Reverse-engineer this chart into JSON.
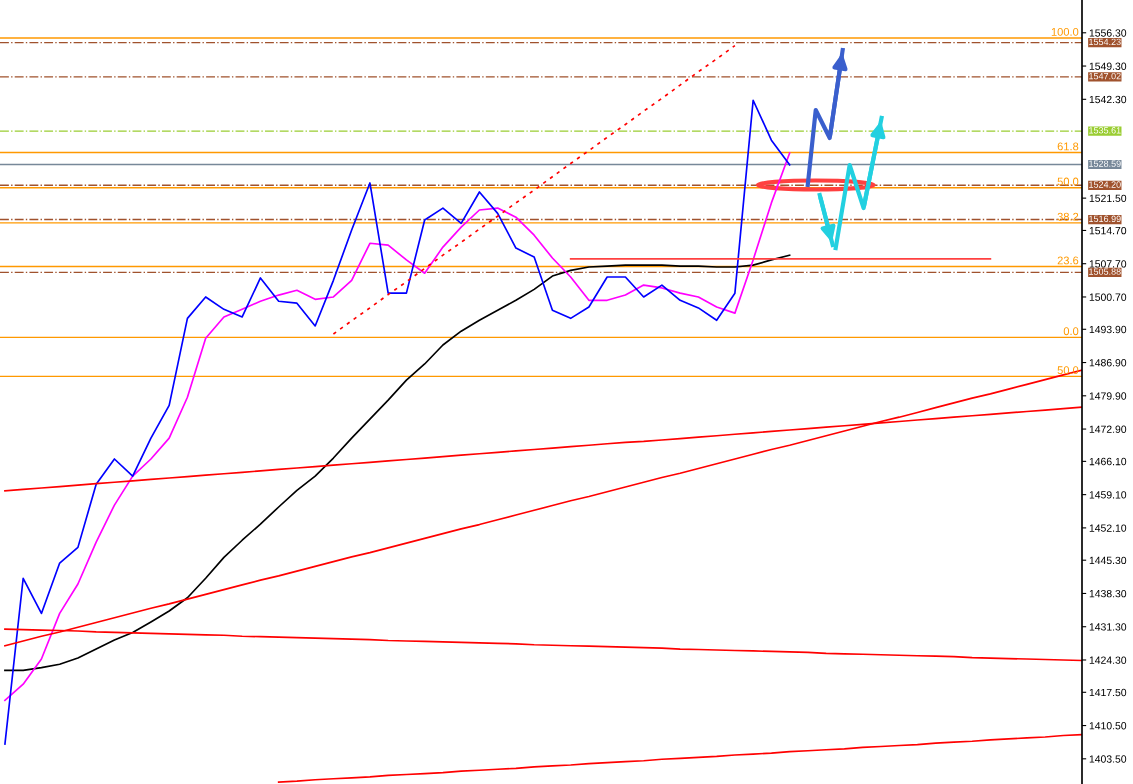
{
  "chart_data": {
    "type": "line",
    "categories": [
      null,
      null,
      null,
      null,
      null,
      null,
      null,
      null,
      null,
      null,
      null,
      null,
      null,
      null,
      null,
      null,
      null,
      null,
      null,
      null,
      null,
      null,
      null,
      null,
      null,
      null,
      null,
      null,
      null,
      null,
      null,
      null,
      null,
      null,
      null,
      null,
      null,
      null,
      null,
      null,
      null,
      null,
      null,
      null,
      null,
      null,
      null,
      null,
      null,
      null,
      null,
      null,
      null,
      null,
      null,
      null,
      null,
      null,
      null,
      null
    ],
    "ylim": [
      1398.2,
      1563.2
    ],
    "yticks": [
      {
        "value": 1403.5,
        "label": "1403.50"
      },
      {
        "value": 1410.5,
        "label": "1410.50"
      },
      {
        "value": 1417.5,
        "label": "1417.50"
      },
      {
        "value": 1424.3,
        "label": "1424.30"
      },
      {
        "value": 1431.3,
        "label": "1431.30"
      },
      {
        "value": 1438.3,
        "label": "1438.30"
      },
      {
        "value": 1445.3,
        "label": "1445.30"
      },
      {
        "value": 1452.1,
        "label": "1452.10"
      },
      {
        "value": 1459.1,
        "label": "1459.10"
      },
      {
        "value": 1466.1,
        "label": "1466.10"
      },
      {
        "value": 1472.9,
        "label": "1472.90"
      },
      {
        "value": 1479.9,
        "label": "1479.90"
      },
      {
        "value": 1486.9,
        "label": "1486.90"
      },
      {
        "value": 1493.9,
        "label": "1493.90"
      },
      {
        "value": 1500.7,
        "label": "1500.70"
      },
      {
        "value": 1507.7,
        "label": "1507.70"
      },
      {
        "value": 1514.7,
        "label": "1514.70"
      },
      {
        "value": 1521.5,
        "label": "1521.50"
      },
      {
        "value": 1542.3,
        "label": "1542.30"
      },
      {
        "value": 1549.3,
        "label": "1549.30"
      },
      {
        "value": 1556.3,
        "label": "1556.30"
      }
    ],
    "tick_labels": "y",
    "grid": false,
    "legend": false,
    "marker": "none",
    "line_style": "solid",
    "series": [
      {
        "color": "#000000",
        "values": [
          1422.1,
          1422.1,
          1422.7,
          1423.4,
          1424.7,
          1426.6,
          1428.5,
          1430.1,
          1432.3,
          1434.6,
          1437.4,
          1441.5,
          1445.9,
          1449.5,
          1452.9,
          1456.5,
          1460.0,
          1463.0,
          1466.8,
          1471.0,
          1475.0,
          1479.0,
          1483.2,
          1486.6,
          1490.6,
          1493.5,
          1495.8,
          1497.9,
          1500.0,
          1502.3,
          1505.1,
          1506.3,
          1507.0,
          1507.2,
          1507.4,
          1507.4,
          1507.4,
          1507.2,
          1507.2,
          1507.0,
          1507.0,
          1507.4,
          1508.5,
          1509.5,
          null,
          null,
          null,
          null,
          null,
          null,
          null,
          null,
          null,
          null,
          null,
          null,
          null,
          null,
          null,
          null
        ]
      },
      {
        "color": "#ff00ff",
        "values": [
          1415.8,
          1419.2,
          1424.5,
          1434.1,
          1440.3,
          1449.1,
          1456.9,
          1463.0,
          1466.6,
          1471.0,
          1479.6,
          1492.0,
          1496.5,
          1498.1,
          1499.8,
          1501.1,
          1502.1,
          1500.2,
          1500.7,
          1504.2,
          1512.0,
          1511.6,
          1508.5,
          1505.7,
          1511.2,
          1515.4,
          1519.0,
          1519.4,
          1517.5,
          1513.7,
          1508.9,
          1504.9,
          1500.0,
          1500.0,
          1501.1,
          1503.2,
          1502.6,
          1501.5,
          1500.7,
          1498.6,
          1497.3,
          1508.5,
          1520.5,
          1531.0,
          null,
          null,
          null,
          null,
          null,
          null,
          null,
          null,
          null,
          null,
          null,
          null,
          null,
          null,
          null,
          null
        ]
      },
      {
        "color": "#0000ff",
        "values": [
          1406.6,
          1441.5,
          1434.1,
          1444.7,
          1448.0,
          1461.3,
          1466.6,
          1463.0,
          1471.0,
          1477.9,
          1496.2,
          1500.7,
          1498.1,
          1496.5,
          1504.7,
          1499.8,
          1499.4,
          1494.6,
          1504.2,
          1514.8,
          1524.7,
          1501.5,
          1501.5,
          1516.9,
          1519.4,
          1516.2,
          1522.8,
          1518.3,
          1511.0,
          1509.1,
          1497.9,
          1496.2,
          1498.6,
          1504.9,
          1504.9,
          1500.7,
          1503.2,
          1500.0,
          1498.4,
          1495.8,
          1501.5,
          1542.1,
          1533.7,
          1528.5,
          null,
          null,
          null,
          null,
          null,
          null,
          null,
          null,
          null,
          null,
          null,
          null,
          null,
          null,
          null,
          null
        ]
      },
      {
        "color": "#ff0000",
        "values": [
          1459.9,
          1460.2,
          1460.5,
          1460.8,
          1461.1,
          1461.4,
          1461.7,
          1462.0,
          1462.3,
          1462.6,
          1462.9,
          1463.2,
          1463.5,
          1463.8,
          1464.1,
          1464.4,
          1464.7,
          1465.0,
          1465.3,
          1465.6,
          1465.9,
          1466.2,
          1466.5,
          1466.8,
          1467.1,
          1467.4,
          1467.7,
          1468.0,
          1468.3,
          1468.6,
          1468.9,
          1469.2,
          1469.5,
          1469.8,
          1470.1,
          1470.3,
          1470.6,
          1470.9,
          1471.2,
          1471.5,
          1471.8,
          1472.1,
          1472.4,
          1472.7,
          1473.0,
          1473.3,
          1473.6,
          1473.9,
          1474.2,
          1474.5,
          1474.8,
          1475.1,
          1475.4,
          1475.7,
          1476.0,
          1476.3,
          1476.6,
          1476.9,
          1477.2,
          1477.5
        ]
      },
      {
        "color": "#ff0000",
        "values": [
          1427.3,
          1428.3,
          1429.3,
          1430.2,
          1431.2,
          1432.2,
          1433.2,
          1434.2,
          1435.2,
          1436.1,
          1437.1,
          1438.1,
          1439.1,
          1440.1,
          1441.1,
          1442.0,
          1443.0,
          1444.0,
          1445.0,
          1446.0,
          1446.9,
          1447.9,
          1448.9,
          1449.9,
          1450.9,
          1451.9,
          1452.8,
          1453.8,
          1454.8,
          1455.8,
          1456.8,
          1457.8,
          1458.7,
          1459.7,
          1460.7,
          1461.7,
          1462.7,
          1463.6,
          1464.6,
          1465.6,
          1466.6,
          1467.6,
          1468.6,
          1469.5,
          1470.5,
          1471.5,
          1472.5,
          1473.5,
          1474.5,
          1475.4,
          1476.4,
          1477.4,
          1478.4,
          1479.4,
          1480.3,
          1481.3,
          1482.3,
          1483.3,
          1484.3,
          1485.3
        ]
      },
      {
        "color": "#ff0000",
        "values": [
          1430.8,
          1430.7,
          1430.6,
          1430.5,
          1430.4,
          1430.2,
          1430.1,
          1430.0,
          1429.9,
          1429.8,
          1429.7,
          1429.6,
          1429.5,
          1429.3,
          1429.2,
          1429.1,
          1429.0,
          1428.9,
          1428.8,
          1428.7,
          1428.6,
          1428.4,
          1428.3,
          1428.2,
          1428.1,
          1428.0,
          1427.9,
          1427.8,
          1427.7,
          1427.5,
          1427.4,
          1427.3,
          1427.2,
          1427.1,
          1427.0,
          1426.9,
          1426.8,
          1426.6,
          1426.5,
          1426.4,
          1426.3,
          1426.2,
          1426.1,
          1426.0,
          1425.9,
          1425.7,
          1425.6,
          1425.5,
          1425.4,
          1425.3,
          1425.2,
          1425.1,
          1425.0,
          1424.8,
          1424.7,
          1424.6,
          1424.5,
          1424.4,
          1424.3,
          1424.2
        ]
      },
      {
        "color": "#ff0000",
        "values": [
          null,
          null,
          null,
          null,
          null,
          null,
          null,
          null,
          null,
          null,
          null,
          null,
          null,
          null,
          null,
          1398.6,
          1398.8,
          1399.1,
          1399.3,
          1399.5,
          1399.7,
          1400.0,
          1400.2,
          1400.4,
          1400.6,
          1400.9,
          1401.1,
          1401.3,
          1401.5,
          1401.8,
          1402.0,
          1402.2,
          1402.5,
          1402.7,
          1402.9,
          1403.1,
          1403.4,
          1403.6,
          1403.8,
          1404.0,
          1404.3,
          1404.5,
          1404.7,
          1405.0,
          1405.2,
          1405.4,
          1405.6,
          1405.9,
          1406.1,
          1406.3,
          1406.5,
          1406.8,
          1407.0,
          1407.2,
          1407.5,
          1407.7,
          1407.9,
          1408.1,
          1408.4,
          1408.6
        ]
      },
      {
        "color": "#ff0000",
        "line_style": "dotted",
        "values": [
          null,
          null,
          null,
          null,
          null,
          null,
          null,
          null,
          null,
          null,
          null,
          null,
          null,
          null,
          null,
          null,
          null,
          null,
          1492.9,
          1495.7,
          1498.4,
          1501.2,
          1503.9,
          1506.7,
          1509.5,
          1512.2,
          1515.0,
          1517.7,
          1520.5,
          1523.2,
          1526.0,
          1528.8,
          1531.5,
          1534.3,
          1537.0,
          1539.8,
          1542.5,
          1545.3,
          1548.1,
          1550.8,
          1553.6,
          null,
          null,
          null,
          null,
          null,
          null,
          null,
          null,
          null,
          null,
          null,
          null,
          null,
          null,
          null,
          null,
          null,
          null,
          null
        ]
      },
      {
        "color": "#ff4040",
        "values": [
          null,
          null,
          null,
          null,
          null,
          null,
          null,
          null,
          null,
          null,
          null,
          null,
          null,
          null,
          null,
          null,
          null,
          null,
          null,
          null,
          null,
          null,
          null,
          null,
          null,
          null,
          null,
          null,
          null,
          null,
          null,
          1508.7,
          1508.7,
          1508.7,
          1508.7,
          1508.7,
          1508.7,
          1508.7,
          1508.7,
          1508.7,
          1508.7,
          1508.7,
          1508.7,
          1508.7,
          1508.7,
          1508.7,
          1508.7,
          1508.7,
          1508.7,
          1508.7,
          1508.7,
          1508.7,
          1508.7,
          1508.7,
          1508.7,
          null,
          null,
          null,
          null,
          null
        ]
      }
    ],
    "ref_lines": [
      {
        "axis": "y",
        "value": 1555.2,
        "color": "#ff9900",
        "line_style": "solid"
      },
      {
        "axis": "y",
        "value": 1531.1,
        "color": "#ff9900",
        "line_style": "solid"
      },
      {
        "axis": "y",
        "value": 1523.7,
        "color": "#ff9900",
        "line_style": "solid"
      },
      {
        "axis": "y",
        "value": 1516.3,
        "color": "#ff9900",
        "line_style": "solid"
      },
      {
        "axis": "y",
        "value": 1507.1,
        "color": "#ff9900",
        "line_style": "solid"
      },
      {
        "axis": "y",
        "value": 1492.2,
        "color": "#ff9900",
        "line_style": "solid"
      },
      {
        "axis": "y",
        "value": 1484.0,
        "color": "#ff9900",
        "line_style": "solid"
      },
      {
        "axis": "y",
        "value": 1554.23,
        "label": "1554.23",
        "color": "#a0522d",
        "line_style": "dashed"
      },
      {
        "axis": "y",
        "value": 1547.02,
        "label": "1547.02",
        "color": "#a0522d",
        "line_style": "dashed"
      },
      {
        "axis": "y",
        "value": 1535.61,
        "label": "1535.61",
        "color": "#9acd32",
        "line_style": "dashed"
      },
      {
        "axis": "y",
        "value": 1528.59,
        "label": "1528.59",
        "color": "#778899",
        "line_style": "solid"
      },
      {
        "axis": "y",
        "value": 1524.2,
        "label": "1524.20",
        "color": "#a0522d",
        "line_style": "dashed"
      },
      {
        "axis": "y",
        "value": 1516.99,
        "label": "1516.99",
        "color": "#a0522d",
        "line_style": "dashed"
      },
      {
        "axis": "y",
        "value": 1505.88,
        "label": "1505.88",
        "color": "#a0522d",
        "line_style": "dashed"
      }
    ],
    "annotations": [
      {
        "text": "100.0",
        "y": 1555.2
      },
      {
        "text": "61.8",
        "y": 1531.1
      },
      {
        "text": "50.0",
        "y": 1523.7
      },
      {
        "text": "38.2",
        "y": 1516.3
      },
      {
        "text": "23.6",
        "y": 1507.1
      },
      {
        "text": "0.0",
        "y": 1492.2
      },
      {
        "text": "50.0",
        "y": 1484.0
      }
    ]
  }
}
